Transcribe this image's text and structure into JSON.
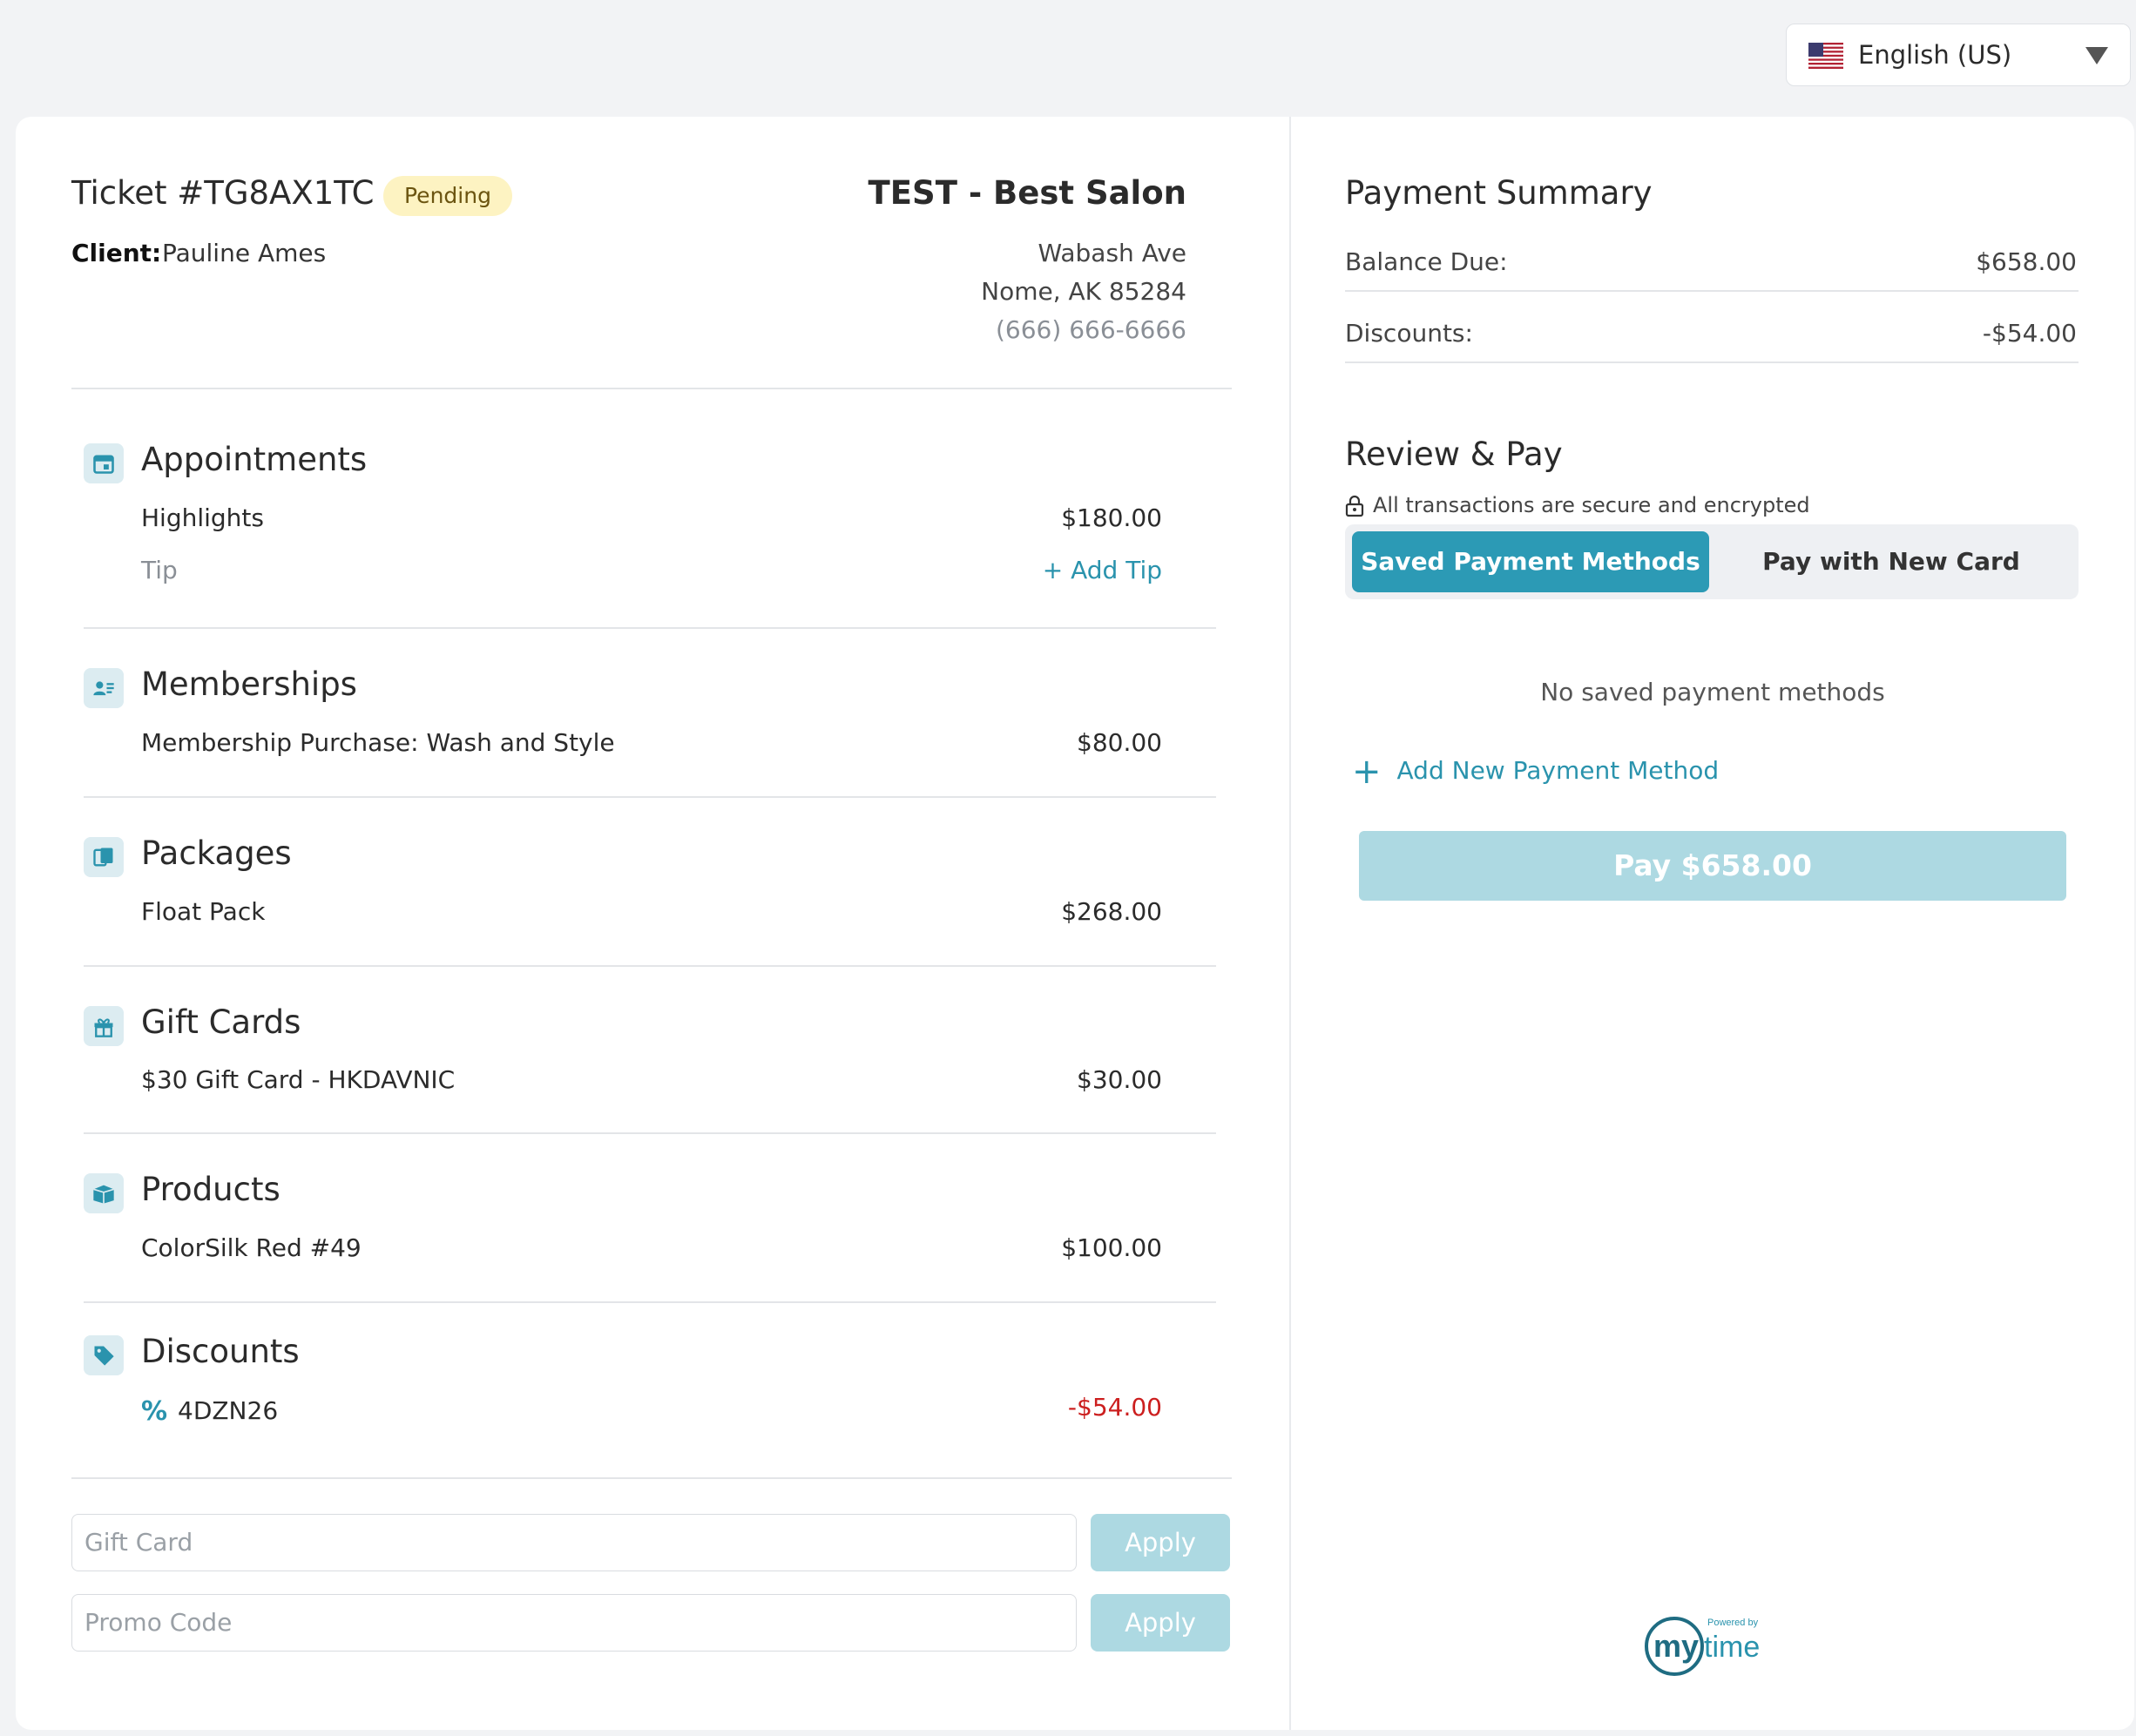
{
  "language": {
    "label": "English (US)"
  },
  "ticket": {
    "title": "Ticket #TG8AX1TC",
    "status": "Pending",
    "client_label": "Client:",
    "client_name": "Pauline Ames"
  },
  "salon": {
    "name": "TEST - Best Salon",
    "street": "Wabash Ave",
    "city_line": "Nome, AK 85284",
    "phone": "(666) 666-6666"
  },
  "sections": {
    "appointments": {
      "title": "Appointments",
      "item": "Highlights",
      "price": "$180.00",
      "tip_label": "Tip",
      "add_tip": "+ Add Tip"
    },
    "memberships": {
      "title": "Memberships",
      "item": "Membership Purchase: Wash and Style",
      "price": "$80.00"
    },
    "packages": {
      "title": "Packages",
      "item": "Float Pack",
      "price": "$268.00"
    },
    "gift_cards": {
      "title": "Gift Cards",
      "item": "$30 Gift Card - HKDAVNIC",
      "price": "$30.00"
    },
    "products": {
      "title": "Products",
      "item": "ColorSilk Red #49",
      "price": "$100.00"
    },
    "discounts": {
      "title": "Discounts",
      "item": "4DZN26",
      "price": "-$54.00"
    }
  },
  "codes": {
    "gift_card_placeholder": "Gift Card",
    "promo_code_placeholder": "Promo Code",
    "apply_label": "Apply"
  },
  "summary": {
    "title": "Payment Summary",
    "balance_label": "Balance Due:",
    "balance_value": "$658.00",
    "discounts_label": "Discounts:",
    "discounts_value": "-$54.00"
  },
  "pay": {
    "title": "Review & Pay",
    "secure_text": "All transactions are secure and encrypted",
    "tab_saved": "Saved Payment Methods",
    "tab_new": "Pay with New Card",
    "no_saved": "No saved payment methods",
    "add_method": "Add New Payment Method",
    "pay_button": "Pay $658.00"
  },
  "footer": {
    "powered_by": "Powered by",
    "brand": "mytime"
  },
  "colors": {
    "accent": "#2c9ab5",
    "accent_light": "#add9e2",
    "negative": "#cc1f1f",
    "badge_bg": "#fdf3c2"
  }
}
